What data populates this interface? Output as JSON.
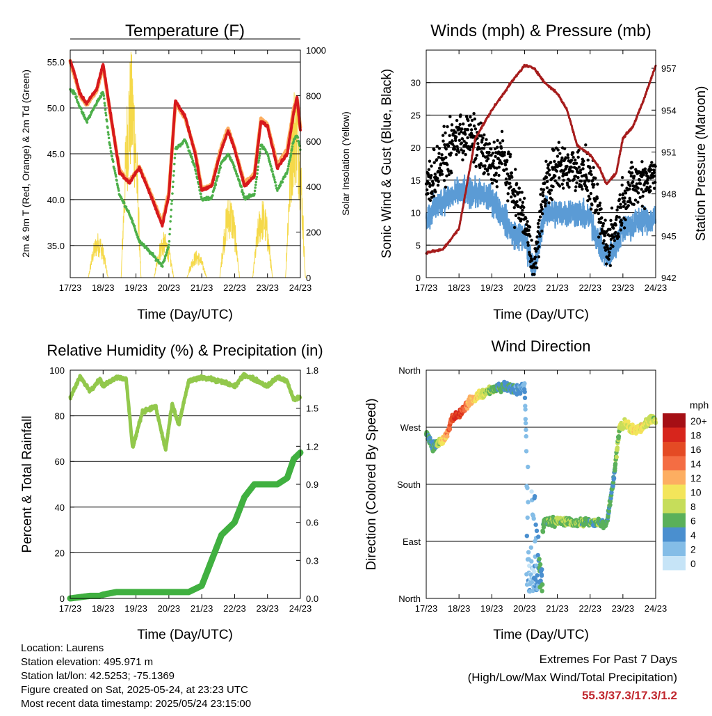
{
  "x_ticks": [
    "17/23",
    "18/23",
    "19/23",
    "20/23",
    "21/23",
    "22/23",
    "23/23",
    "24/23"
  ],
  "x_label": "Time (Day/UTC)",
  "colors": {
    "temp_red": "#d7191c",
    "temp_orange": "#fdae61",
    "dewpoint_green": "#4daf4a",
    "solar_yellow": "#f5d94a",
    "gust_black": "#000000",
    "wind_blue": "#5b9bd5",
    "pressure_maroon": "#a61c1c",
    "rh_green": "#92c84c",
    "precip_green": "#40b040"
  },
  "chart_data": [
    {
      "type": "line",
      "title": "Temperature (F)",
      "ylabel": "2m & 9m T (Red, Orange) & 2m Td (Green)",
      "ylabel_right": "Solar Insolation (Yellow)",
      "ylim": [
        31.5,
        56.3
      ],
      "ylim_right": [
        0,
        1000
      ],
      "yticks": [
        "35.0",
        "40.0",
        "45.0",
        "50.0",
        "55.0"
      ],
      "yticks_right": [
        "0",
        "200",
        "400",
        "600",
        "800",
        "1000"
      ],
      "x": [
        0,
        0.15,
        0.3,
        0.5,
        0.8,
        1.0,
        1.2,
        1.5,
        1.8,
        2.1,
        2.5,
        2.8,
        3.0,
        3.2,
        3.5,
        3.8,
        4.0,
        4.3,
        4.6,
        4.8,
        5.0,
        5.3,
        5.6,
        5.8,
        6.0,
        6.3,
        6.6,
        6.8,
        6.9,
        7.0
      ],
      "series": [
        {
          "values": [
            55.2,
            53.5,
            51.5,
            50.5,
            52.0,
            54.8,
            50.0,
            43.0,
            41.8,
            43.5,
            40.0,
            37.2,
            40.5,
            50.8,
            49.0,
            45.0,
            41.0,
            41.5,
            45.5,
            47.5,
            45.5,
            41.5,
            42.5,
            48.5,
            48.0,
            43.5,
            45.0,
            49.5,
            51.2,
            47.5
          ]
        },
        {
          "values": [
            55.0,
            53.2,
            51.3,
            50.3,
            51.8,
            54.5,
            49.8,
            43.2,
            42.0,
            43.6,
            40.2,
            37.5,
            40.8,
            50.5,
            48.8,
            45.2,
            41.2,
            41.6,
            45.8,
            47.8,
            45.6,
            41.8,
            42.8,
            48.8,
            48.2,
            43.8,
            45.5,
            50.0,
            51.0,
            47.8
          ]
        },
        {
          "values": [
            52.0,
            51.5,
            50.0,
            48.5,
            50.5,
            51.8,
            46.0,
            40.5,
            38.5,
            35.5,
            34.0,
            32.8,
            35.0,
            45.5,
            46.5,
            43.5,
            40.0,
            40.2,
            44.0,
            45.0,
            43.5,
            40.2,
            40.5,
            46.0,
            45.0,
            41.0,
            43.0,
            46.5,
            47.0,
            45.5
          ]
        }
      ],
      "solar": [
        {
          "center": 0.85,
          "peak": 200
        },
        {
          "center": 1.85,
          "peak": 1000
        },
        {
          "center": 2.85,
          "peak": 200
        },
        {
          "center": 3.85,
          "peak": 120
        },
        {
          "center": 4.85,
          "peak": 370
        },
        {
          "center": 5.85,
          "peak": 350
        },
        {
          "center": 6.85,
          "peak": 880
        }
      ]
    },
    {
      "type": "scatter",
      "title": "Winds (mph) & Pressure (mb)",
      "ylabel": "Sonic Wind & Gust (Blue, Black)",
      "ylabel_right": "Station Pressure (Maroon)",
      "ylim": [
        0,
        35
      ],
      "ylim_right": [
        942,
        958.3
      ],
      "yticks": [
        "0",
        "5",
        "10",
        "15",
        "20",
        "25",
        "30"
      ],
      "yticks_right": [
        "942",
        "945",
        "948",
        "951",
        "954",
        "957"
      ],
      "x": [
        0,
        0.5,
        1.0,
        1.5,
        2.0,
        2.3,
        2.6,
        3.0,
        3.3,
        3.6,
        4.0,
        4.3,
        4.6,
        5.0,
        5.3,
        5.5,
        5.8,
        6.0,
        6.3,
        6.6,
        7.0
      ],
      "series": [
        {
          "name": "gust",
          "values": [
            14,
            18,
            22,
            21,
            17,
            19,
            14,
            9,
            1,
            14,
            17,
            17,
            17,
            15,
            9,
            5,
            8,
            12,
            14,
            15,
            16
          ]
        },
        {
          "name": "wind",
          "values": [
            9,
            12,
            13,
            13,
            12,
            10,
            7,
            6,
            1,
            10,
            10,
            10,
            10,
            9,
            5,
            3,
            5,
            8,
            8,
            9,
            9
          ]
        },
        {
          "name": "pressure",
          "values": [
            943.8,
            944.0,
            945.5,
            952.0,
            954.0,
            955.0,
            956.0,
            957.2,
            957.0,
            956.0,
            955.2,
            954.0,
            951.5,
            950.8,
            949.8,
            948.7,
            949.5,
            952.0,
            952.8,
            954.5,
            957.2
          ]
        }
      ]
    },
    {
      "type": "line",
      "title": "Relative Humidity (%) & Precipitation (in)",
      "ylabel": "Percent & Total Rainfall",
      "ylim": [
        0,
        100
      ],
      "ylim_right": [
        0,
        1.8
      ],
      "yticks": [
        "0",
        "20",
        "40",
        "60",
        "80",
        "100"
      ],
      "yticks_right": [
        "0.0",
        "0.3",
        "0.6",
        "0.9",
        "1.2",
        "1.5",
        "1.8"
      ],
      "x": [
        0,
        0.3,
        0.6,
        0.9,
        1.0,
        1.4,
        1.7,
        1.9,
        2.2,
        2.6,
        2.9,
        3.1,
        3.3,
        3.6,
        4.0,
        4.3,
        4.6,
        5.0,
        5.3,
        5.6,
        6.0,
        6.3,
        6.6,
        6.8,
        7.0
      ],
      "series": [
        {
          "name": "rh",
          "values": [
            88,
            97,
            91,
            96,
            93,
            97,
            96,
            66,
            82,
            84,
            65,
            85,
            76,
            95,
            97,
            96,
            95,
            93,
            98,
            96,
            93,
            97,
            95,
            87,
            88
          ]
        },
        {
          "name": "precip",
          "values": [
            0.0,
            0.01,
            0.02,
            0.02,
            0.03,
            0.05,
            0.05,
            0.05,
            0.05,
            0.05,
            0.05,
            0.05,
            0.05,
            0.05,
            0.1,
            0.3,
            0.5,
            0.6,
            0.8,
            0.9,
            0.9,
            0.9,
            0.95,
            1.1,
            1.15
          ]
        }
      ]
    },
    {
      "type": "scatter",
      "title": "Wind Direction",
      "ylabel": "Direction (Colored By Speed)",
      "yticks": [
        "North",
        "East",
        "South",
        "West",
        "North"
      ],
      "ylim": [
        0,
        360
      ],
      "x": [
        0,
        0.2,
        0.4,
        0.6,
        0.8,
        1.0,
        1.3,
        1.6,
        2.0,
        2.4,
        2.8,
        3.0,
        3.2,
        3.6,
        4.0,
        4.5,
        5.0,
        5.5,
        5.7,
        5.9,
        6.1,
        6.3,
        6.6,
        6.9,
        7.0
      ],
      "series": [
        {
          "name": "direction",
          "values": [
            260,
            240,
            245,
            255,
            285,
            290,
            310,
            320,
            330,
            335,
            328,
            335,
            10,
            120,
            122,
            120,
            120,
            118,
            180,
            270,
            275,
            265,
            270,
            285,
            280
          ]
        },
        {
          "name": "speed",
          "values": [
            6,
            4,
            8,
            12,
            16,
            18,
            12,
            10,
            6,
            5,
            4,
            3,
            1,
            6,
            7,
            7,
            6,
            6,
            5,
            8,
            9,
            10,
            10,
            8,
            9
          ]
        }
      ],
      "legend": {
        "title": "mph",
        "labels": [
          "20+",
          "18",
          "16",
          "14",
          "12",
          "10",
          "8",
          "6",
          "4",
          "2",
          "0"
        ],
        "colors": [
          "#a50f15",
          "#d7251c",
          "#e44a24",
          "#f46d43",
          "#fdae61",
          "#f3e55a",
          "#c6dd5a",
          "#5ab05a",
          "#4a8fcf",
          "#84bde7",
          "#c6e4f7"
        ]
      }
    }
  ],
  "footer": {
    "location": "Location: Laurens",
    "elevation": "Station elevation: 495.971 m",
    "latlon": "Station lat/lon: 42.5253; -75.1369",
    "created": "Figure created on Sat, 2025-05-24, at 23:23 UTC",
    "timestamp": "Most recent data timestamp: 2025/05/24 23:15:00"
  },
  "extremes": {
    "title": "Extremes For Past 7 Days",
    "subtitle": "(High/Low/Max Wind/Total Precipitation)",
    "values": "55.3/37.3/17.3/1.2"
  }
}
